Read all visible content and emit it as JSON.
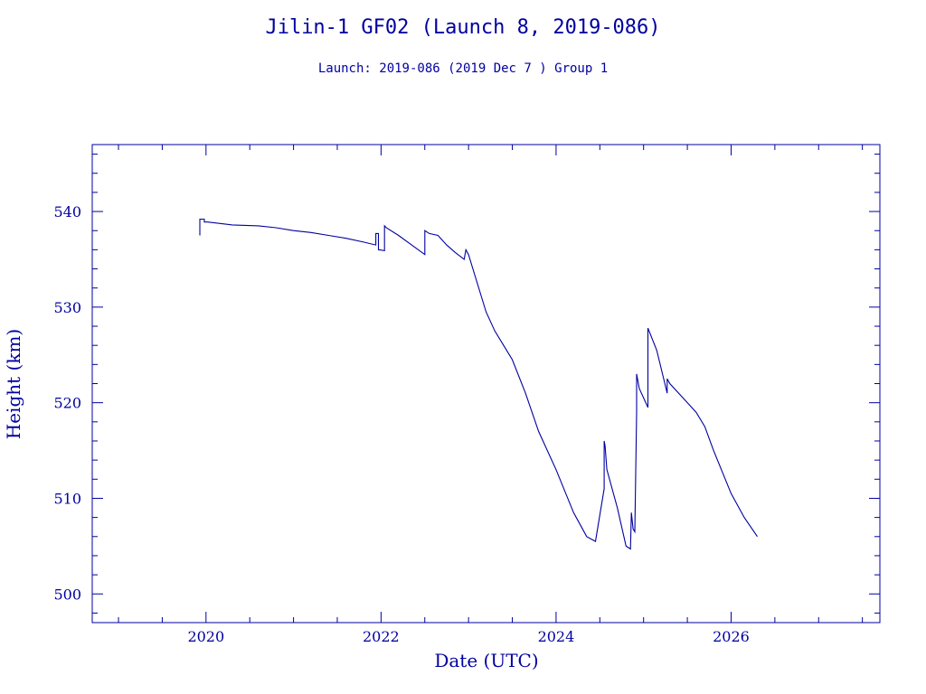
{
  "chart_data": {
    "type": "line",
    "title": "Jilin-1 GF02 (Launch 8, 2019-086)",
    "subtitle": "Launch: 2019-086  (2019 Dec  7 )  Group 1",
    "xlabel": "Date (UTC)",
    "ylabel": "Height (km)",
    "xlim": [
      2018.7,
      2027.7
    ],
    "ylim": [
      497,
      547
    ],
    "x_ticks": [
      2020,
      2022,
      2024,
      2026
    ],
    "y_ticks": [
      500,
      510,
      520,
      530,
      540
    ],
    "grid": false,
    "color": "#0000a0",
    "series": [
      {
        "x": [
          2019.93,
          2019.93,
          2019.93,
          2019.98,
          2019.98,
          2020.02,
          2020.3,
          2020.6,
          2020.8,
          2021.0,
          2021.2,
          2021.4,
          2021.6,
          2021.8,
          2021.94,
          2021.94,
          2021.97,
          2021.97,
          2021.98,
          2022.04,
          2022.04,
          2022.06,
          2022.2,
          2022.35,
          2022.5,
          2022.5,
          2022.55,
          2022.65,
          2022.75,
          2022.85,
          2022.95,
          2022.97,
          2023.0,
          2023.1,
          2023.2,
          2023.3,
          2023.4,
          2023.5,
          2023.65,
          2023.8,
          2024.0,
          2024.2,
          2024.35,
          2024.45,
          2024.55,
          2024.55,
          2024.56,
          2024.58,
          2024.7,
          2024.8,
          2024.85,
          2024.86,
          2024.88,
          2024.9,
          2024.92,
          2024.92,
          2024.95,
          2025.05,
          2025.05,
          2025.15,
          2025.27,
          2025.27,
          2025.3,
          2025.45,
          2025.6,
          2025.7,
          2025.8,
          2026.0,
          2026.15,
          2026.3
        ],
        "y": [
          537.5,
          539.2,
          539.2,
          539.2,
          538.9,
          538.9,
          538.6,
          538.5,
          538.3,
          538.0,
          537.8,
          537.5,
          537.2,
          536.8,
          536.5,
          537.7,
          537.7,
          536.0,
          536.0,
          535.9,
          538.5,
          538.3,
          537.5,
          536.5,
          535.5,
          538.0,
          537.7,
          537.5,
          536.5,
          535.7,
          535.0,
          536.0,
          535.5,
          532.5,
          529.5,
          527.5,
          526.0,
          524.5,
          521.0,
          517.0,
          513.0,
          508.5,
          506.0,
          505.5,
          511.0,
          516.0,
          515.5,
          513.0,
          509.0,
          505.0,
          504.7,
          508.5,
          506.8,
          506.5,
          519.0,
          523.0,
          521.5,
          519.5,
          527.8,
          525.5,
          521.0,
          522.5,
          522.0,
          520.5,
          519.0,
          517.5,
          515.0,
          510.5,
          508.0,
          506.0
        ]
      }
    ]
  }
}
